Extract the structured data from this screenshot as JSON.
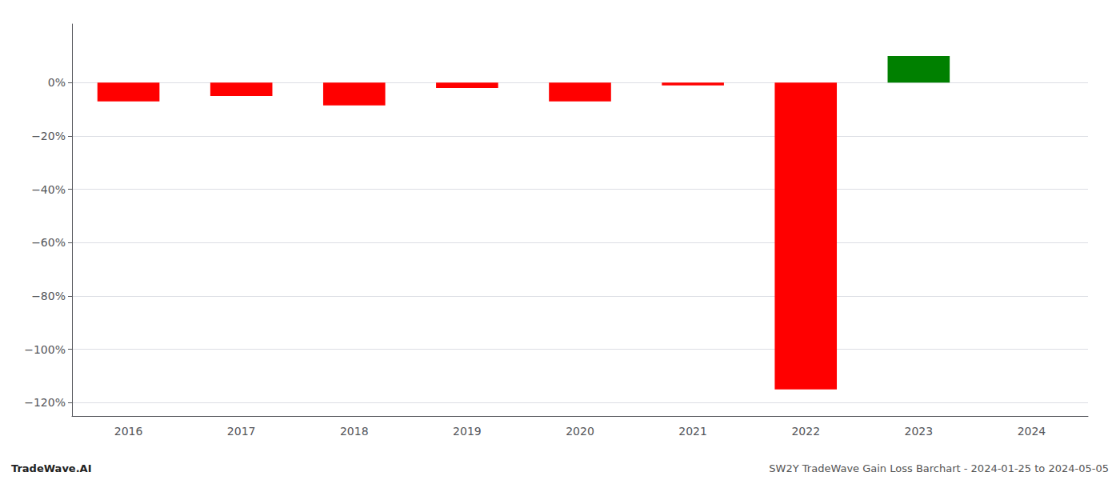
{
  "chart_data": {
    "type": "bar",
    "categories": [
      "2016",
      "2017",
      "2018",
      "2019",
      "2020",
      "2021",
      "2022",
      "2023",
      "2024"
    ],
    "values": [
      -7.0,
      -5.0,
      -8.5,
      -2.0,
      -7.0,
      -1.0,
      -115.0,
      10.0,
      null
    ],
    "colors": [
      "#ff0000",
      "#ff0000",
      "#ff0000",
      "#ff0000",
      "#ff0000",
      "#ff0000",
      "#ff0000",
      "#008000",
      null
    ],
    "ylim": [
      -125,
      22
    ],
    "yticks": [
      {
        "value": 0,
        "label": "0%"
      },
      {
        "value": -20,
        "label": "−20%"
      },
      {
        "value": -40,
        "label": "−40%"
      },
      {
        "value": -60,
        "label": "−60%"
      },
      {
        "value": -80,
        "label": "−80%"
      },
      {
        "value": -100,
        "label": "−100%"
      },
      {
        "value": -120,
        "label": "−120%"
      }
    ],
    "grid": true,
    "annotations": [
      "TradeWave.AI",
      "SW2Y TradeWave Gain Loss Barchart - 2024-01-25 to 2024-05-05"
    ]
  }
}
